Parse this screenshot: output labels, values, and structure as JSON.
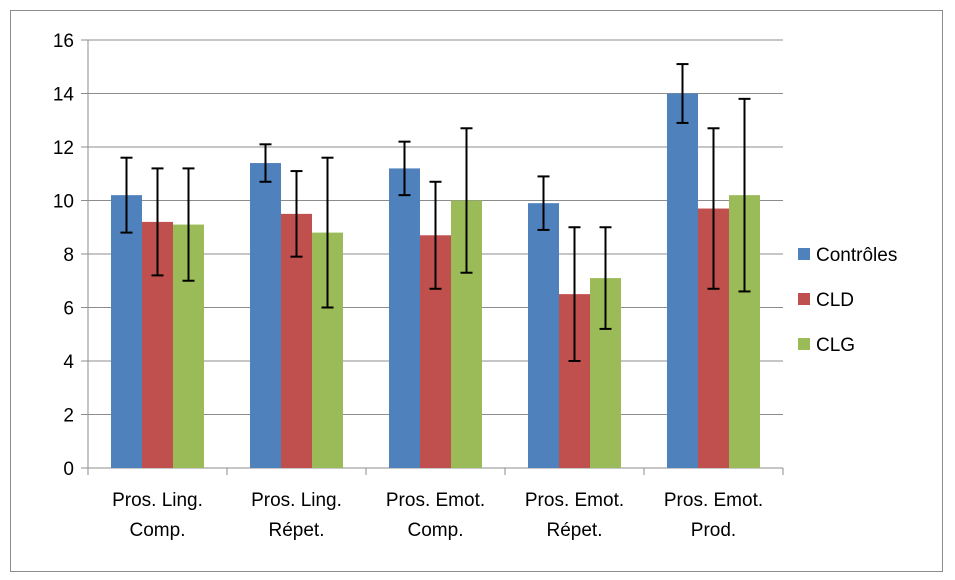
{
  "chart_data": {
    "type": "bar",
    "categories": [
      [
        "Pros. Ling.",
        "Comp."
      ],
      [
        "Pros. Ling.",
        "Répet."
      ],
      [
        "Pros. Emot.",
        "Comp."
      ],
      [
        "Pros. Emot.",
        "Répet."
      ],
      [
        "Pros. Emot.",
        "Prod."
      ]
    ],
    "series": [
      {
        "name": "Contrôles",
        "color": "#4f81bd",
        "values": [
          10.2,
          11.4,
          11.2,
          9.9,
          14.0
        ],
        "err_low": [
          8.8,
          10.7,
          10.2,
          8.9,
          12.9
        ],
        "err_high": [
          11.6,
          12.1,
          12.2,
          10.9,
          15.1
        ]
      },
      {
        "name": "CLD",
        "color": "#c0504d",
        "values": [
          9.2,
          9.5,
          8.7,
          6.5,
          9.7
        ],
        "err_low": [
          7.2,
          7.9,
          6.7,
          4.0,
          6.7
        ],
        "err_high": [
          11.2,
          11.1,
          10.7,
          9.0,
          12.7
        ]
      },
      {
        "name": "CLG",
        "color": "#9bbb59",
        "values": [
          9.1,
          8.8,
          10.0,
          7.1,
          10.2
        ],
        "err_low": [
          7.0,
          6.0,
          7.3,
          5.2,
          6.6
        ],
        "err_high": [
          11.2,
          11.6,
          12.7,
          9.0,
          13.8
        ]
      }
    ],
    "yticks": [
      "0",
      "2",
      "4",
      "6",
      "8",
      "10",
      "12",
      "14",
      "16"
    ],
    "ylim": [
      0,
      16
    ],
    "grid": true,
    "legend_position": "right",
    "title": "",
    "xlabel": "",
    "ylabel": ""
  }
}
